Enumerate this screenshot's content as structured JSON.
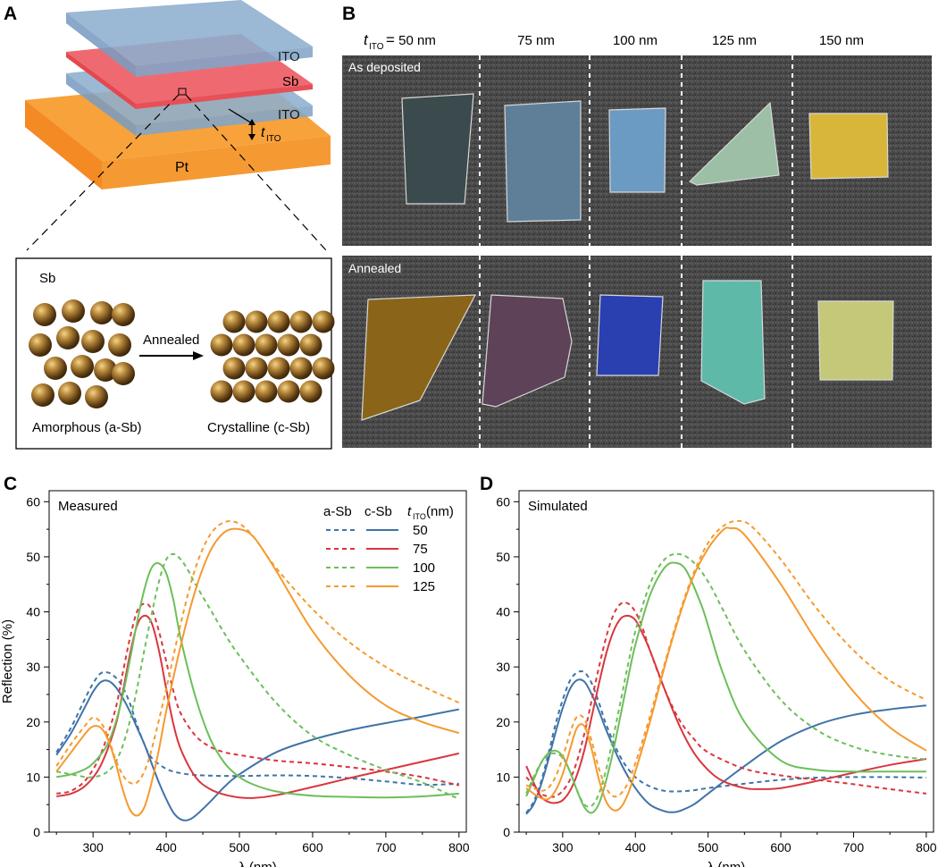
{
  "panel_a": {
    "label": "A",
    "layer_top": "ITO",
    "layer_middle": "Sb",
    "layer_bottom": "ITO",
    "substrate": "Pt",
    "thickness_symbol": "t",
    "thickness_sub": "ITO",
    "inset_title": "Sb",
    "arrow_label": "Annealed",
    "left_caption": "Amorphous (a-Sb)",
    "right_caption": "Crystalline (c-Sb)"
  },
  "panel_b": {
    "label": "B",
    "header_symbol": "t",
    "header_sub": "ITO",
    "header_eq": "=",
    "thicknesses": [
      "50 nm",
      "75 nm",
      "100 nm",
      "125 nm",
      "150 nm"
    ],
    "row_top_label": "As deposited",
    "row_bottom_label": "Annealed",
    "colors": {
      "deposited": [
        "#3b4a4c",
        "#5f7f98",
        "#6b9ac2",
        "#9dbfa6",
        "#d8b63a"
      ],
      "annealed": [
        "#8a6418",
        "#5e4258",
        "#2a3fb0",
        "#5fb9a8",
        "#c4c878"
      ]
    }
  },
  "chart_data": [
    {
      "panel": "C",
      "type": "line",
      "title": "Measured",
      "xlabel": "λ (nm)",
      "ylabel": "Reflection (%)",
      "xlim": [
        240,
        810
      ],
      "ylim": [
        0,
        62
      ],
      "xticks": [
        300,
        400,
        500,
        600,
        700,
        800
      ],
      "yticks": [
        0,
        10,
        20,
        30,
        40,
        50,
        60
      ],
      "legend": {
        "col_a": "a-Sb",
        "col_c": "c-Sb",
        "col_t": "t",
        "col_t_sub": "ITO",
        "col_t_unit": " (nm)",
        "position": "top-right"
      },
      "series": [
        {
          "name": "50",
          "phase": "a-Sb",
          "color": "#3f73a8",
          "dash": true,
          "x": [
            250,
            270,
            290,
            300,
            310,
            320,
            330,
            340,
            350,
            360,
            370,
            380,
            400,
            420,
            450,
            500,
            550,
            600,
            650,
            700,
            750,
            800
          ],
          "y": [
            14.5,
            19,
            24.5,
            27,
            28.8,
            29,
            28.2,
            26.5,
            23.5,
            19.5,
            16,
            13.5,
            11.5,
            10.7,
            10.3,
            10.2,
            10.3,
            10.2,
            9.8,
            9.2,
            8.6,
            8.8
          ]
        },
        {
          "name": "50",
          "phase": "c-Sb",
          "color": "#3f73a8",
          "dash": false,
          "x": [
            250,
            270,
            290,
            300,
            310,
            320,
            330,
            340,
            350,
            360,
            370,
            380,
            390,
            400,
            410,
            420,
            430,
            440,
            460,
            480,
            500,
            550,
            600,
            650,
            700,
            750,
            800
          ],
          "y": [
            14,
            18,
            23,
            25.5,
            27.2,
            27.5,
            26.5,
            24.5,
            22,
            19,
            16,
            12.5,
            9,
            6,
            3.5,
            2.3,
            2.2,
            3,
            5.5,
            8.3,
            10.5,
            14.5,
            16.8,
            18.5,
            19.8,
            21,
            22.3
          ]
        },
        {
          "name": "75",
          "phase": "a-Sb",
          "color": "#d9363e",
          "dash": true,
          "x": [
            250,
            270,
            290,
            310,
            330,
            340,
            350,
            360,
            370,
            380,
            390,
            400,
            410,
            420,
            440,
            460,
            480,
            500,
            550,
            600,
            650,
            700,
            750,
            800
          ],
          "y": [
            7,
            7.5,
            9.5,
            14,
            22,
            28.5,
            35,
            40,
            41.5,
            40.5,
            36.5,
            31,
            25.5,
            21.5,
            17.5,
            15.5,
            14.5,
            14,
            13,
            12.5,
            11.8,
            11,
            10,
            8.5
          ]
        },
        {
          "name": "75",
          "phase": "c-Sb",
          "color": "#d9363e",
          "dash": false,
          "x": [
            250,
            270,
            290,
            310,
            330,
            340,
            350,
            360,
            370,
            380,
            390,
            400,
            410,
            420,
            440,
            460,
            480,
            500,
            520,
            550,
            600,
            650,
            700,
            750,
            800
          ],
          "y": [
            6.5,
            7,
            8.5,
            12,
            19,
            25,
            32,
            37.5,
            39.3,
            38,
            33,
            26,
            19.5,
            15,
            10,
            7.8,
            6.8,
            6.3,
            6.2,
            6.7,
            8.2,
            9.8,
            11.3,
            12.8,
            14.3
          ]
        },
        {
          "name": "100",
          "phase": "a-Sb",
          "color": "#6cbf5a",
          "dash": true,
          "x": [
            250,
            270,
            290,
            300,
            310,
            320,
            330,
            340,
            350,
            360,
            370,
            380,
            390,
            400,
            410,
            420,
            430,
            440,
            460,
            480,
            500,
            550,
            600,
            650,
            700,
            750,
            800
          ],
          "y": [
            11,
            10.5,
            10,
            10,
            10.3,
            11,
            12.5,
            15.5,
            20,
            26,
            33,
            39.5,
            45.5,
            49.5,
            50.5,
            49.5,
            47.5,
            45,
            40.5,
            36,
            32,
            23.5,
            17.5,
            14,
            11.3,
            9,
            6
          ]
        },
        {
          "name": "100",
          "phase": "c-Sb",
          "color": "#6cbf5a",
          "dash": false,
          "x": [
            250,
            270,
            290,
            300,
            310,
            320,
            330,
            340,
            350,
            360,
            370,
            380,
            390,
            400,
            410,
            420,
            440,
            460,
            480,
            500,
            520,
            550,
            600,
            650,
            700,
            750,
            800
          ],
          "y": [
            10,
            10.5,
            11.5,
            12.5,
            14,
            16,
            19.5,
            24.5,
            31,
            38,
            44,
            48,
            48.8,
            47,
            42,
            35,
            24.5,
            17,
            12.5,
            10,
            8.6,
            7.4,
            6.6,
            6.4,
            6.3,
            6.5,
            7
          ]
        },
        {
          "name": "125",
          "phase": "a-Sb",
          "color": "#f59a2e",
          "dash": true,
          "x": [
            250,
            270,
            290,
            300,
            310,
            320,
            330,
            340,
            350,
            360,
            370,
            380,
            400,
            420,
            440,
            460,
            480,
            500,
            520,
            550,
            600,
            650,
            700,
            750,
            800
          ],
          "y": [
            12,
            16,
            19.5,
            20.8,
            20,
            17.5,
            13.5,
            10.5,
            9,
            9,
            11,
            15,
            26,
            38,
            48,
            54,
            56.3,
            56,
            53.5,
            48,
            40.5,
            34.5,
            30,
            26.5,
            23.5
          ]
        },
        {
          "name": "125",
          "phase": "c-Sb",
          "color": "#f59a2e",
          "dash": false,
          "x": [
            250,
            270,
            290,
            300,
            310,
            320,
            330,
            340,
            350,
            360,
            370,
            380,
            390,
            400,
            420,
            440,
            460,
            480,
            500,
            520,
            550,
            600,
            650,
            700,
            750,
            800
          ],
          "y": [
            11,
            14.5,
            18,
            19.2,
            19,
            17,
            13,
            8,
            4.2,
            3,
            4.5,
            9,
            15,
            22,
            34,
            44,
            51,
            54.5,
            55,
            53.5,
            47.5,
            36.5,
            28.5,
            23,
            20,
            18
          ]
        }
      ]
    },
    {
      "panel": "D",
      "type": "line",
      "title": "Simulated",
      "xlabel": "λ (nm)",
      "ylabel": "",
      "xlim": [
        240,
        810
      ],
      "ylim": [
        0,
        62
      ],
      "xticks": [
        300,
        400,
        500,
        600,
        700,
        800
      ],
      "yticks": [
        0,
        10,
        20,
        30,
        40,
        50,
        60
      ],
      "series": [
        {
          "name": "50",
          "phase": "a-Sb",
          "color": "#3f73a8",
          "dash": true,
          "x": [
            250,
            260,
            270,
            280,
            290,
            300,
            310,
            320,
            330,
            340,
            350,
            360,
            380,
            400,
            420,
            440,
            460,
            480,
            500,
            550,
            600,
            650,
            700,
            750,
            800
          ],
          "y": [
            3.5,
            5.5,
            9,
            14,
            19.5,
            24,
            27.5,
            29,
            29,
            27,
            23.5,
            19.5,
            13.5,
            10,
            8.3,
            7.5,
            7.4,
            7.6,
            8,
            8.8,
            9.5,
            9.9,
            10,
            10,
            9.9
          ]
        },
        {
          "name": "50",
          "phase": "c-Sb",
          "color": "#3f73a8",
          "dash": false,
          "x": [
            250,
            260,
            270,
            280,
            290,
            300,
            310,
            320,
            330,
            340,
            350,
            360,
            380,
            400,
            420,
            440,
            450,
            460,
            480,
            500,
            550,
            600,
            650,
            700,
            750,
            800
          ],
          "y": [
            3.3,
            5,
            8.5,
            13,
            18,
            22.5,
            26,
            27.6,
            27.3,
            25,
            22,
            18.5,
            12.5,
            8,
            5,
            3.8,
            3.6,
            3.8,
            5,
            7,
            12,
            16.5,
            19.5,
            21.3,
            22.3,
            23
          ]
        },
        {
          "name": "75",
          "phase": "a-Sb",
          "color": "#d9363e",
          "dash": true,
          "x": [
            250,
            260,
            270,
            280,
            290,
            300,
            310,
            320,
            330,
            340,
            350,
            360,
            370,
            380,
            390,
            400,
            410,
            420,
            440,
            460,
            480,
            500,
            550,
            600,
            650,
            700,
            750,
            800
          ],
          "y": [
            10,
            8.5,
            7,
            6.5,
            6.5,
            7.5,
            9.5,
            13,
            18,
            24,
            30,
            35.5,
            39.5,
            41.5,
            41.5,
            40,
            37,
            33,
            26,
            20.5,
            17,
            14.5,
            11.5,
            10.3,
            9.5,
            8.7,
            7.8,
            7
          ]
        },
        {
          "name": "75",
          "phase": "c-Sb",
          "color": "#d9363e",
          "dash": false,
          "x": [
            250,
            260,
            270,
            280,
            290,
            300,
            310,
            320,
            330,
            340,
            350,
            360,
            370,
            380,
            390,
            400,
            410,
            420,
            440,
            460,
            480,
            500,
            520,
            550,
            570,
            600,
            650,
            700,
            750,
            800
          ],
          "y": [
            12,
            9,
            6.5,
            5.5,
            5.3,
            5.8,
            7.5,
            10.5,
            15,
            21,
            27,
            32.5,
            36.5,
            38.8,
            39.3,
            38.5,
            36,
            33,
            26,
            19.5,
            14.5,
            11.3,
            9.3,
            8,
            7.8,
            8,
            9.3,
            10.8,
            12.2,
            13.3
          ]
        },
        {
          "name": "100",
          "phase": "a-Sb",
          "color": "#6cbf5a",
          "dash": true,
          "x": [
            250,
            260,
            270,
            280,
            290,
            300,
            310,
            320,
            330,
            340,
            350,
            360,
            370,
            380,
            390,
            400,
            420,
            440,
            460,
            480,
            500,
            520,
            550,
            600,
            650,
            700,
            750,
            800
          ],
          "y": [
            7,
            10,
            12.5,
            14,
            14.3,
            13.5,
            11,
            7.5,
            5,
            4.8,
            7,
            11.5,
            17.5,
            24,
            30.5,
            36.5,
            45,
            49.5,
            50.5,
            49,
            45.5,
            40.5,
            33,
            24,
            18.5,
            15.5,
            14,
            13.2
          ]
        },
        {
          "name": "100",
          "phase": "c-Sb",
          "color": "#6cbf5a",
          "dash": false,
          "x": [
            250,
            260,
            270,
            280,
            290,
            300,
            310,
            320,
            330,
            340,
            350,
            360,
            370,
            380,
            390,
            400,
            420,
            440,
            455,
            470,
            490,
            500,
            520,
            550,
            600,
            650,
            700,
            750,
            800
          ],
          "y": [
            6.5,
            9.5,
            12.5,
            14.3,
            14.8,
            13.8,
            11,
            7.5,
            4.5,
            3.5,
            5.2,
            9.5,
            15,
            21.5,
            28,
            34,
            43,
            48,
            48.9,
            47.5,
            41.5,
            37.5,
            29,
            20,
            13,
            11.3,
            11,
            11,
            11
          ]
        },
        {
          "name": "125",
          "phase": "a-Sb",
          "color": "#f59a2e",
          "dash": true,
          "x": [
            250,
            260,
            270,
            280,
            290,
            300,
            310,
            320,
            330,
            340,
            350,
            360,
            370,
            380,
            390,
            400,
            420,
            440,
            460,
            480,
            500,
            520,
            540,
            560,
            600,
            650,
            700,
            750,
            800
          ],
          "y": [
            8.5,
            8,
            7.5,
            8,
            10,
            13.5,
            18,
            21,
            20.5,
            16.5,
            11.5,
            8,
            6.5,
            7,
            9,
            12.5,
            21,
            30.5,
            39.5,
            47,
            52.5,
            55.5,
            56.5,
            55.5,
            49.5,
            40.5,
            33,
            27.5,
            24
          ]
        },
        {
          "name": "125",
          "phase": "c-Sb",
          "color": "#f59a2e",
          "dash": false,
          "x": [
            250,
            260,
            270,
            280,
            290,
            300,
            310,
            320,
            330,
            340,
            350,
            360,
            370,
            380,
            390,
            400,
            420,
            440,
            460,
            480,
            500,
            520,
            530,
            550,
            600,
            650,
            700,
            750,
            800
          ],
          "y": [
            8,
            7,
            6.2,
            6,
            7.5,
            10.5,
            15,
            19,
            19.2,
            15,
            9.5,
            5.5,
            4,
            4.5,
            7,
            11,
            20,
            30,
            39,
            46.5,
            51.5,
            54.8,
            55.2,
            54,
            45,
            34.5,
            25.5,
            19,
            14.8
          ]
        }
      ]
    }
  ]
}
